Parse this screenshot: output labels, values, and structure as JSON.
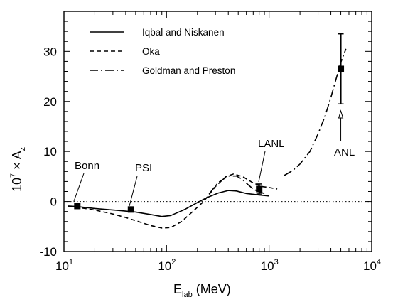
{
  "chart_data": {
    "type": "line",
    "title": "",
    "xlabel": {
      "main": "E",
      "sub": "lab",
      "rest": " (MeV)"
    },
    "ylabel": {
      "pre": "10",
      "sup": "7",
      "mid": " × A",
      "sub": "z"
    },
    "xscale": "log",
    "xlim": [
      10,
      10000
    ],
    "ylim": [
      -10,
      38
    ],
    "x_ticks": [
      {
        "value": 10,
        "base": "10",
        "exp": "1"
      },
      {
        "value": 100,
        "base": "10",
        "exp": "2"
      },
      {
        "value": 1000,
        "base": "10",
        "exp": "3"
      },
      {
        "value": 10000,
        "base": "10",
        "exp": "4"
      }
    ],
    "y_ticks": [
      {
        "value": -10,
        "label": "-10"
      },
      {
        "value": 0,
        "label": "0"
      },
      {
        "value": 10,
        "label": "10"
      },
      {
        "value": 20,
        "label": "20"
      },
      {
        "value": 30,
        "label": "30"
      }
    ],
    "zero_line": "dotted",
    "grid": false,
    "legend_position": "top-left",
    "series": [
      {
        "name": "Iqbal and Niskanen",
        "style": "solid",
        "color": "#000000",
        "points": [
          [
            11,
            -0.9
          ],
          [
            13,
            -1.0
          ],
          [
            20,
            -1.4
          ],
          [
            35,
            -1.8
          ],
          [
            50,
            -2.1
          ],
          [
            70,
            -2.6
          ],
          [
            90,
            -3.0
          ],
          [
            110,
            -2.8
          ],
          [
            150,
            -1.6
          ],
          [
            200,
            -0.2
          ],
          [
            250,
            0.8
          ],
          [
            320,
            1.7
          ],
          [
            400,
            2.2
          ],
          [
            480,
            2.1
          ],
          [
            600,
            1.6
          ],
          [
            800,
            1.3
          ],
          [
            1000,
            1.1
          ]
        ]
      },
      {
        "name": "Oka",
        "style": "dashed",
        "color": "#000000",
        "points": [
          [
            11,
            -1.0
          ],
          [
            15,
            -1.3
          ],
          [
            20,
            -1.7
          ],
          [
            30,
            -2.5
          ],
          [
            40,
            -3.2
          ],
          [
            55,
            -4.1
          ],
          [
            70,
            -4.8
          ],
          [
            90,
            -5.3
          ],
          [
            110,
            -5.2
          ],
          [
            140,
            -4.0
          ],
          [
            180,
            -2.0
          ],
          [
            230,
            0.0
          ],
          [
            300,
            3.0
          ],
          [
            380,
            5.0
          ],
          [
            450,
            5.5
          ],
          [
            550,
            5.0
          ],
          [
            700,
            3.7
          ],
          [
            850,
            3.0
          ],
          [
            1000,
            2.8
          ],
          [
            1200,
            2.5
          ]
        ]
      },
      {
        "name": "Goldman and Preston",
        "style": "dash-dot",
        "color": "#000000",
        "segments": [
          [
            [
              260,
              1.5
            ],
            [
              320,
              3.8
            ],
            [
              400,
              5.1
            ],
            [
              480,
              5.1
            ],
            [
              550,
              4.4
            ],
            [
              620,
              3.4
            ],
            [
              700,
              2.5
            ],
            [
              800,
              1.9
            ],
            [
              900,
              1.6
            ]
          ],
          [
            [
              1400,
              5.2
            ],
            [
              1700,
              6.2
            ],
            [
              2000,
              7.5
            ],
            [
              2500,
              10.0
            ],
            [
              3000,
              13.5
            ],
            [
              3500,
              17.0
            ],
            [
              4000,
              20.8
            ],
            [
              4500,
              24.5
            ],
            [
              5000,
              27.8
            ],
            [
              5600,
              30.5
            ]
          ]
        ]
      }
    ],
    "data_points": [
      {
        "label": "Bonn",
        "x": 13.5,
        "y": -0.9,
        "err": 0.5
      },
      {
        "label": "PSI",
        "x": 45,
        "y": -1.6,
        "err": 0.4
      },
      {
        "label": "LANL",
        "x": 800,
        "y": 2.5,
        "err": 1.0
      },
      {
        "label": "ANL",
        "x": 5000,
        "y": 26.5,
        "err": 7.0
      }
    ],
    "annotations": [
      "Bonn",
      "PSI",
      "LANL",
      "ANL"
    ]
  }
}
